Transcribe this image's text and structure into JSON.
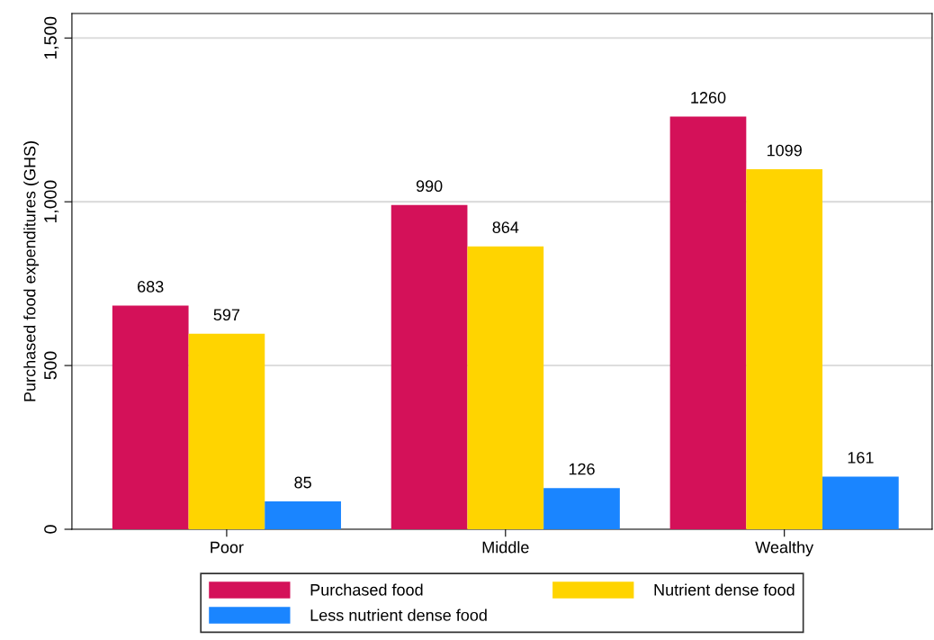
{
  "chart_data": {
    "type": "bar",
    "ylabel": "Purchased food expenditures (GHS)",
    "categories": [
      "Poor",
      "Middle",
      "Wealthy"
    ],
    "series": [
      {
        "name": "Purchased food",
        "color": "#d41159",
        "values": [
          683,
          990,
          1260
        ]
      },
      {
        "name": "Nutrient dense food",
        "color": "#ffd400",
        "values": [
          597,
          864,
          1099
        ]
      },
      {
        "name": "Less nutrient dense food",
        "color": "#1a85ff",
        "values": [
          85,
          126,
          161
        ]
      }
    ],
    "ylim": [
      0,
      1575
    ],
    "yticks": [
      0,
      500,
      {
        "value": 1000,
        "label": "1,000"
      },
      {
        "value": 1500,
        "label": "1,500"
      }
    ],
    "grid": "y",
    "legend": "bottom",
    "data_labels": true
  }
}
